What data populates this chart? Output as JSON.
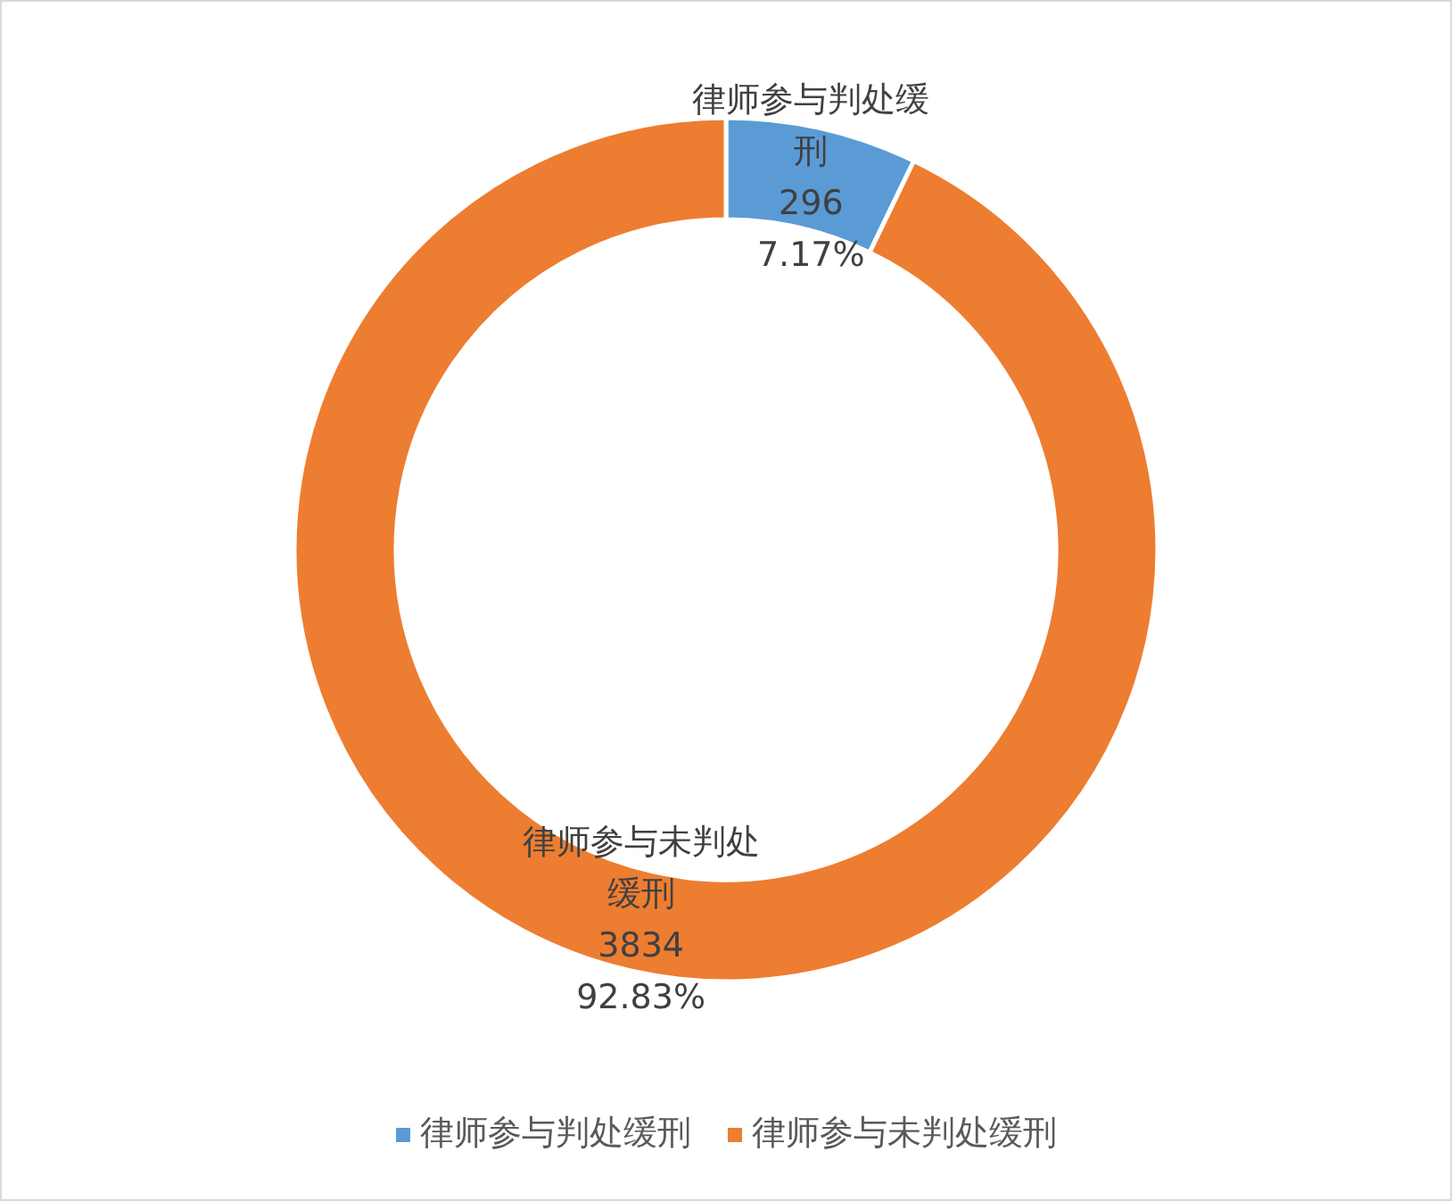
{
  "chart_data": {
    "type": "donut",
    "categories": [
      "律师参与判处缓刑",
      "律师参与未判处缓刑"
    ],
    "values": [
      296,
      3834
    ],
    "colors": [
      "#5b9bd5",
      "#ed7d31"
    ],
    "value_labels": [
      "296\n7.17%",
      "3834\n92.83%"
    ],
    "legend": "bottom"
  }
}
